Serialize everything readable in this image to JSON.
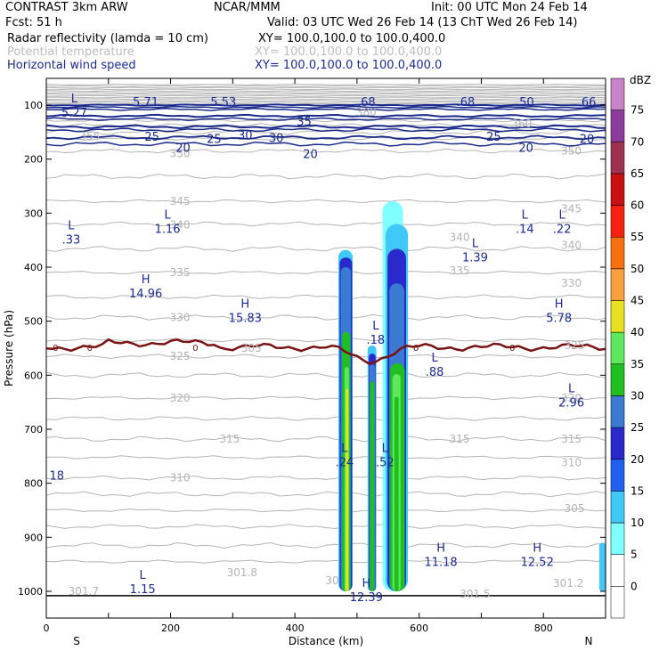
{
  "header": {
    "left1": "CONTRAST  3km ARW",
    "mid1": "NCAR/MMM",
    "right1": "Init: 00 UTC Mon 24 Feb 14",
    "left2": "Fcst:    51 h",
    "right2": "Valid: 03 UTC Wed 26 Feb 14 (13 ChT Wed 26 Feb 14)",
    "field1": "Radar reflectivity (lamda = 10 cm)",
    "xy1": "XY= 100.0,100.0 to 100.0,400.0",
    "field2": "Potential temperature",
    "xy2": "XY= 100.0,100.0 to 100.0,400.0",
    "field3": "Horizontal wind speed",
    "xy3": "XY= 100.0,100.0 to 100.0,400.0"
  },
  "colors": {
    "theta": "#b4b4b4",
    "wind": "#1a2a8a",
    "freezing": "#7a1212",
    "label_blue": "#1a2a9a"
  },
  "chart_data": {
    "type": "contour",
    "xlabel": "Distance (km)",
    "ylabel": "Pressure (hPa)",
    "xlim": [
      0,
      900
    ],
    "ylim": [
      1010,
      60
    ],
    "x_ticks": [
      0,
      200,
      400,
      600,
      800
    ],
    "y_ticks": [
      100,
      200,
      300,
      400,
      500,
      600,
      700,
      800,
      900,
      1000
    ],
    "x_end_labels": {
      "left": "S",
      "right": "N"
    },
    "colorbar": {
      "unit": "dBZ",
      "levels": [
        0,
        5,
        10,
        15,
        20,
        25,
        30,
        35,
        40,
        45,
        50,
        55,
        60,
        65,
        70,
        75
      ],
      "colors": [
        "#ffffff",
        "#7fffff",
        "#40c8f8",
        "#2060f0",
        "#2a2acc",
        "#3a7ad0",
        "#1fbf1f",
        "#5ee85e",
        "#e8e020",
        "#f8a040",
        "#f87010",
        "#f82010",
        "#c81010",
        "#a03050",
        "#8c3c9c",
        "#c884c8"
      ]
    },
    "theta_labels": [
      {
        "x": 515,
        "p": 113,
        "text": "380"
      },
      {
        "x": 765,
        "p": 135,
        "text": "360"
      },
      {
        "x": 70,
        "p": 158,
        "text": "355"
      },
      {
        "x": 215,
        "p": 190,
        "text": "350"
      },
      {
        "x": 845,
        "p": 185,
        "text": "350"
      },
      {
        "x": 215,
        "p": 278,
        "text": "345"
      },
      {
        "x": 845,
        "p": 292,
        "text": "345"
      },
      {
        "x": 215,
        "p": 322,
        "text": "340"
      },
      {
        "x": 665,
        "p": 345,
        "text": "340"
      },
      {
        "x": 845,
        "p": 360,
        "text": "340"
      },
      {
        "x": 215,
        "p": 410,
        "text": "335"
      },
      {
        "x": 665,
        "p": 407,
        "text": "335"
      },
      {
        "x": 845,
        "p": 430,
        "text": "330"
      },
      {
        "x": 215,
        "p": 493,
        "text": "330"
      },
      {
        "x": 330,
        "p": 550,
        "text": "305"
      },
      {
        "x": 215,
        "p": 565,
        "text": "325"
      },
      {
        "x": 850,
        "p": 545,
        "text": "325"
      },
      {
        "x": 215,
        "p": 642,
        "text": "320"
      },
      {
        "x": 845,
        "p": 642,
        "text": "320"
      },
      {
        "x": 295,
        "p": 718,
        "text": "315"
      },
      {
        "x": 665,
        "p": 718,
        "text": "315"
      },
      {
        "x": 845,
        "p": 718,
        "text": "315"
      },
      {
        "x": 215,
        "p": 790,
        "text": "310"
      },
      {
        "x": 845,
        "p": 762,
        "text": "310"
      },
      {
        "x": 850,
        "p": 847,
        "text": "305"
      },
      {
        "x": 60,
        "p": 1000,
        "text": "301.7"
      },
      {
        "x": 315,
        "p": 965,
        "text": "301.8"
      },
      {
        "x": 460,
        "p": 980,
        "text": "30"
      },
      {
        "x": 690,
        "p": 1005,
        "text": "301.5"
      },
      {
        "x": 840,
        "p": 985,
        "text": "301.2"
      }
    ],
    "wind_labels": [
      {
        "x": 415,
        "p": 130,
        "text": "35"
      },
      {
        "x": 170,
        "p": 158,
        "text": "25"
      },
      {
        "x": 270,
        "p": 162,
        "text": "25"
      },
      {
        "x": 320,
        "p": 155,
        "text": "30"
      },
      {
        "x": 370,
        "p": 160,
        "text": "30"
      },
      {
        "x": 220,
        "p": 178,
        "text": "20"
      },
      {
        "x": 425,
        "p": 190,
        "text": "20"
      },
      {
        "x": 720,
        "p": 158,
        "text": "25"
      },
      {
        "x": 772,
        "p": 178,
        "text": "20"
      },
      {
        "x": 870,
        "p": 162,
        "text": "20"
      }
    ],
    "hl_markers": [
      {
        "x": 45,
        "p": 95,
        "letter": "L",
        "value": "5.27"
      },
      {
        "x": 40,
        "p": 330,
        "letter": "L",
        "value": ".33"
      },
      {
        "x": 195,
        "p": 310,
        "letter": "L",
        "value": "1.16"
      },
      {
        "x": 160,
        "p": 430,
        "letter": "H",
        "value": "14.96"
      },
      {
        "x": 320,
        "p": 475,
        "letter": "H",
        "value": "15.83"
      },
      {
        "x": 690,
        "p": 363,
        "letter": "L",
        "value": "1.39"
      },
      {
        "x": 770,
        "p": 310,
        "letter": "L",
        "value": ".14"
      },
      {
        "x": 830,
        "p": 310,
        "letter": "L",
        "value": ".22"
      },
      {
        "x": 825,
        "p": 475,
        "letter": "H",
        "value": "5.78"
      },
      {
        "x": 530,
        "p": 515,
        "letter": "L",
        "value": ".18"
      },
      {
        "x": 625,
        "p": 575,
        "letter": "L",
        "value": ".88"
      },
      {
        "x": 845,
        "p": 632,
        "letter": "L",
        "value": "2.96"
      },
      {
        "x": 480,
        "p": 742,
        "letter": "L",
        "value": ".24"
      },
      {
        "x": 545,
        "p": 742,
        "letter": "L",
        "value": ".52"
      },
      {
        "x": 635,
        "p": 927,
        "letter": "H",
        "value": "11.18"
      },
      {
        "x": 790,
        "p": 927,
        "letter": "H",
        "value": "12.52"
      },
      {
        "x": 155,
        "p": 977,
        "letter": "L",
        "value": "1.15"
      },
      {
        "x": 515,
        "p": 992,
        "letter": "H",
        "value": "12.39"
      }
    ],
    "top_values": [
      {
        "x": 160,
        "p": 93,
        "text": "5.71"
      },
      {
        "x": 285,
        "p": 93,
        "text": "5.53"
      },
      {
        "x": 515,
        "p": 93,
        "text": ".68"
      },
      {
        "x": 675,
        "p": 93,
        "text": ".68"
      },
      {
        "x": 770,
        "p": 93,
        "text": ".50"
      },
      {
        "x": 870,
        "p": 93,
        "text": ".66"
      }
    ],
    "edge_values": [
      {
        "x": 5,
        "p": 785,
        "text": "18"
      }
    ],
    "zero_labels": [
      {
        "x": 15
      },
      {
        "x": 70
      },
      {
        "x": 240
      },
      {
        "x": 595
      },
      {
        "x": 750
      }
    ]
  }
}
